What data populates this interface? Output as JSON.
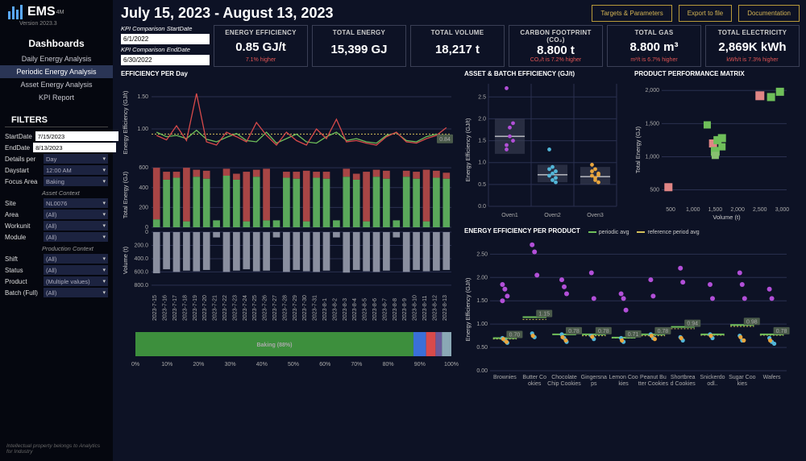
{
  "app": {
    "name": "EMS",
    "suffix": "4M",
    "version": "Version 2023.3"
  },
  "nav": {
    "title": "Dashboards",
    "items": [
      "Daily Energy Analysis",
      "Periodic Energy Analysis",
      "Asset Energy Analysis",
      "KPI Report"
    ],
    "active_index": 1
  },
  "filters": {
    "title": "FILTERS",
    "start_date": {
      "label": "StartDate",
      "value": "7/15/2023"
    },
    "end_date": {
      "label": "EndDate",
      "value": "8/13/2023"
    },
    "details_per": {
      "label": "Details per",
      "value": "Day"
    },
    "daystart": {
      "label": "Daystart",
      "value": "12:00 AM"
    },
    "focus_area": {
      "label": "Focus Area",
      "value": "Baking"
    },
    "asset_context_label": "Asset Context",
    "site": {
      "label": "Site",
      "value": "NL0076"
    },
    "area": {
      "label": "Area",
      "value": "(All)"
    },
    "workunit": {
      "label": "Workunit",
      "value": "(All)"
    },
    "module": {
      "label": "Module",
      "value": "(All)"
    },
    "production_context_label": "Production Context",
    "shift": {
      "label": "Shift",
      "value": "(All)"
    },
    "status": {
      "label": "Status",
      "value": "(All)"
    },
    "product": {
      "label": "Product",
      "value": "(Multiple values)"
    },
    "batch_full": {
      "label": "Batch (Full)",
      "value": "(All)"
    }
  },
  "footer": "Intellectual property belongs to Analytics for Industry",
  "header": {
    "date_range": "July 15, 2023 - August 13, 2023",
    "buttons": [
      "Targets & Parameters",
      "Export to file",
      "Documentation"
    ]
  },
  "kpi_dates": {
    "start": {
      "label": "KPI Comparison StartDate",
      "value": "6/1/2022"
    },
    "end": {
      "label": "KPI Comparison EndDate",
      "value": "6/30/2022"
    }
  },
  "kpis": [
    {
      "title": "ENERGY EFFICIENCY",
      "value": "0.85 GJ/t",
      "sub": "7.1% higher"
    },
    {
      "title": "TOTAL ENERGY",
      "value": "15,399 GJ",
      "sub": ""
    },
    {
      "title": "TOTAL VOLUME",
      "value": "18,217 t",
      "sub": ""
    },
    {
      "title": "CARBON FOOTPRINT (CO₂)",
      "value": "8.800 t",
      "sub": "CO₂/t is 7.2% higher"
    },
    {
      "title": "TOTAL GAS",
      "value": "8.800 m³",
      "sub": "m³/t is 6.7% higher"
    },
    {
      "title": "TOTAL ELECTRICITY",
      "value": "2,869K kWh",
      "sub": "kWh/t is 7.3% higher"
    }
  ],
  "colors": {
    "bg": "#0d1225",
    "panel_border": "#3a3f55",
    "green": "#6fbf5a",
    "red": "#d84a4a",
    "orange": "#e9a53c",
    "purple": "#b24fd8",
    "cyan": "#52b6d8",
    "grey": "#8a8f9f",
    "yellow_dash": "#d4c05a",
    "mid_green": "#5aa85a"
  },
  "efficiency_chart": {
    "title": "EFFICIENCY PER Day",
    "line_ylabel": "Energy Efficiency (GJ/t)",
    "line_yticks": [
      "1.00",
      "1.50"
    ],
    "ref_value": 0.92,
    "end_badge": "0.84",
    "bar_ylabel": "Total Energy (GJ)",
    "bar_yticks": [
      "0",
      "200",
      "400",
      "600"
    ],
    "vol_ylabel": "Volume (t)",
    "vol_yticks": [
      "0",
      "200.0",
      "400.0",
      "600.0",
      "800.0"
    ],
    "dates": [
      "2023-7-15",
      "2023-7-16",
      "2023-7-17",
      "2023-7-18",
      "2023-7-19",
      "2023-7-20",
      "2023-7-21",
      "2023-7-22",
      "2023-7-23",
      "2023-7-24",
      "2023-7-25",
      "2023-7-26",
      "2023-7-27",
      "2023-7-28",
      "2023-7-29",
      "2023-7-30",
      "2023-7-31",
      "2023-8-1",
      "2023-8-2",
      "2023-8-3",
      "2023-8-4",
      "2023-8-5",
      "2023-8-6",
      "2023-8-7",
      "2023-8-8",
      "2023-8-9",
      "2023-8-10",
      "2023-8-11",
      "2023-8-12",
      "2023-8-13"
    ],
    "green_line": [
      0.95,
      0.88,
      0.9,
      0.85,
      0.98,
      0.84,
      0.8,
      0.87,
      0.93,
      0.82,
      0.8,
      0.95,
      0.78,
      0.85,
      0.92,
      0.8,
      0.78,
      0.88,
      0.95,
      0.82,
      0.85,
      0.8,
      0.78,
      0.9,
      0.94,
      0.82,
      0.8,
      0.88,
      0.92,
      0.84
    ],
    "red_line": [
      0.9,
      0.83,
      1.05,
      0.82,
      1.55,
      0.8,
      0.75,
      0.95,
      0.88,
      0.8,
      1.1,
      0.9,
      0.75,
      0.95,
      0.82,
      0.75,
      1.0,
      0.85,
      1.15,
      0.8,
      0.82,
      0.78,
      0.75,
      0.88,
      0.95,
      0.8,
      0.78,
      0.85,
      0.9,
      1.02
    ],
    "energy_bars": [
      {
        "g": 80,
        "r": 520
      },
      {
        "g": 480,
        "r": 80
      },
      {
        "g": 500,
        "r": 60
      },
      {
        "g": 60,
        "r": 540
      },
      {
        "g": 510,
        "r": 70
      },
      {
        "g": 490,
        "r": 80
      },
      {
        "g": 70,
        "r": 0
      },
      {
        "g": 520,
        "r": 70
      },
      {
        "g": 480,
        "r": 60
      },
      {
        "g": 60,
        "r": 500
      },
      {
        "g": 510,
        "r": 70
      },
      {
        "g": 70,
        "r": 520
      },
      {
        "g": 70,
        "r": 0
      },
      {
        "g": 500,
        "r": 60
      },
      {
        "g": 490,
        "r": 70
      },
      {
        "g": 60,
        "r": 510
      },
      {
        "g": 500,
        "r": 60
      },
      {
        "g": 490,
        "r": 70
      },
      {
        "g": 70,
        "r": 0
      },
      {
        "g": 510,
        "r": 80
      },
      {
        "g": 480,
        "r": 60
      },
      {
        "g": 60,
        "r": 500
      },
      {
        "g": 510,
        "r": 70
      },
      {
        "g": 490,
        "r": 80
      },
      {
        "g": 70,
        "r": 0
      },
      {
        "g": 510,
        "r": 60
      },
      {
        "g": 490,
        "r": 70
      },
      {
        "g": 60,
        "r": 520
      },
      {
        "g": 500,
        "r": 70
      },
      {
        "g": 490,
        "r": 60
      }
    ],
    "volume_bars": [
      620,
      560,
      600,
      580,
      590,
      570,
      80,
      600,
      580,
      560,
      590,
      580,
      80,
      600,
      570,
      590,
      600,
      580,
      80,
      610,
      570,
      590,
      600,
      580,
      80,
      600,
      570,
      590,
      580,
      570
    ]
  },
  "stacked_bar": {
    "label": "Baking (88%)",
    "segments": [
      {
        "width": 88,
        "color": "#3d8f3d"
      },
      {
        "width": 4,
        "color": "#3a6fd8"
      },
      {
        "width": 3,
        "color": "#d84a4a"
      },
      {
        "width": 2,
        "color": "#6a5a9a"
      },
      {
        "width": 3,
        "color": "#8aa8b5"
      }
    ],
    "ticks": [
      "0%",
      "10%",
      "20%",
      "30%",
      "40%",
      "50%",
      "60%",
      "70%",
      "80%",
      "90%",
      "100%"
    ]
  },
  "asset_batch": {
    "title": "ASSET & BATCH EFFICIENCY (GJ/t)",
    "ylabel": "Energy Efficiency (GJ/t)",
    "yticks": [
      "0.0",
      "0.5",
      "1.0",
      "1.5",
      "2.0",
      "2.5"
    ],
    "categories": [
      "Oven1",
      "Oven2",
      "Oven3"
    ],
    "boxes": [
      {
        "q1": 1.2,
        "q3": 2.0,
        "med": 1.6,
        "color": "#b24fd8",
        "pts": [
          2.7,
          1.8,
          1.5,
          1.3,
          1.6,
          1.9,
          1.4
        ]
      },
      {
        "q1": 0.55,
        "q3": 0.95,
        "med": 0.72,
        "color": "#52b6d8",
        "pts": [
          1.3,
          0.9,
          0.8,
          0.7,
          0.6,
          0.65,
          0.85,
          0.75,
          0.55
        ]
      },
      {
        "q1": 0.5,
        "q3": 0.9,
        "med": 0.68,
        "color": "#e9a53c",
        "pts": [
          0.95,
          0.85,
          0.75,
          0.7,
          0.6,
          0.55,
          0.8,
          0.65,
          0.72
        ]
      }
    ]
  },
  "product_matrix": {
    "title": "PRODUCT PERFORMANCE MATRIX",
    "xlabel": "Volume (t)",
    "ylabel": "Total Energy (GJ)",
    "xticks": [
      "500",
      "1,000",
      "1,500",
      "2,000",
      "2,500",
      "3,000"
    ],
    "yticks": [
      "500",
      "1,000",
      "1,500",
      "2,000"
    ],
    "points": [
      {
        "x": 450,
        "y": 540,
        "c": "#e08585",
        "s": 10
      },
      {
        "x": 1320,
        "y": 1480,
        "c": "#6fbf5a",
        "s": 9
      },
      {
        "x": 1450,
        "y": 1200,
        "c": "#e08585",
        "s": 10
      },
      {
        "x": 1500,
        "y": 1080,
        "c": "#6fbf5a",
        "s": 11
      },
      {
        "x": 1500,
        "y": 1020,
        "c": "#88c070",
        "s": 9
      },
      {
        "x": 1550,
        "y": 1250,
        "c": "#6fbf5a",
        "s": 10
      },
      {
        "x": 1650,
        "y": 1150,
        "c": "#6fbf5a",
        "s": 9
      },
      {
        "x": 1650,
        "y": 1280,
        "c": "#6fbf5a",
        "s": 10
      },
      {
        "x": 2500,
        "y": 1920,
        "c": "#e08585",
        "s": 11
      },
      {
        "x": 2750,
        "y": 1900,
        "c": "#6fbf5a",
        "s": 10
      },
      {
        "x": 2950,
        "y": 1980,
        "c": "#6fbf5a",
        "s": 10
      }
    ]
  },
  "ee_product": {
    "title": "ENERGY EFFICIENCY PER PRODUCT",
    "legend": [
      {
        "label": "periodic avg",
        "color": "#6fbf5a"
      },
      {
        "label": "reference period avg",
        "color": "#d4c05a"
      }
    ],
    "ylabel": "Energy Efficiency (GJ/t)",
    "yticks": [
      "0.00",
      "0.50",
      "1.00",
      "1.50",
      "2.00",
      "2.50"
    ],
    "products": [
      "Brownies",
      "Butter Cookies",
      "Chocolate Chip Cookies",
      "Gingersnaps",
      "Lemon Cookies",
      "Peanut Butter Cookies",
      "Shortbread Cookies",
      "Snickerdoodl..",
      "Sugar Cookies",
      "Wafers"
    ],
    "periodic_avg": [
      0.7,
      1.15,
      0.78,
      0.78,
      0.71,
      0.78,
      0.94,
      0.78,
      0.98,
      0.78
    ],
    "badges": [
      "0.70",
      "1.15",
      "0.78",
      "0.78",
      "0.71",
      "0.78",
      "0.94",
      "",
      "0.98",
      "0.78"
    ],
    "ref_avg": [
      0.68,
      1.1,
      0.78,
      0.75,
      0.7,
      0.75,
      0.9,
      0.76,
      0.95,
      0.76
    ],
    "purple_pts": [
      [
        1.85,
        1.75,
        1.6,
        1.5
      ],
      [
        2.7,
        2.55,
        2.05
      ],
      [
        1.95,
        1.8,
        1.65
      ],
      [
        2.1,
        1.55
      ],
      [
        1.65,
        1.55,
        1.3
      ],
      [
        1.95,
        1.6
      ],
      [
        2.2,
        1.9
      ],
      [
        1.85,
        1.55
      ],
      [
        2.1,
        1.85,
        1.55
      ],
      [
        1.75,
        1.55
      ]
    ],
    "cyan_pts": [
      [
        0.7,
        0.65,
        0.6
      ],
      [
        0.8,
        0.72
      ],
      [
        0.78,
        0.7,
        0.62
      ],
      [
        0.75,
        0.68
      ],
      [
        0.7,
        0.62
      ],
      [
        0.78,
        0.7
      ],
      [
        0.72,
        0.65
      ],
      [
        0.78,
        0.7
      ],
      [
        0.75,
        0.65
      ],
      [
        0.7,
        0.62,
        0.58
      ]
    ],
    "orange_pts": [
      [
        0.68,
        0.62
      ],
      [
        0.75
      ],
      [
        0.72,
        0.65
      ],
      [
        0.73
      ],
      [
        0.65
      ],
      [
        0.75,
        0.68
      ],
      [
        0.7
      ],
      [
        0.75
      ],
      [
        0.72,
        0.65
      ],
      [
        0.65
      ]
    ]
  }
}
